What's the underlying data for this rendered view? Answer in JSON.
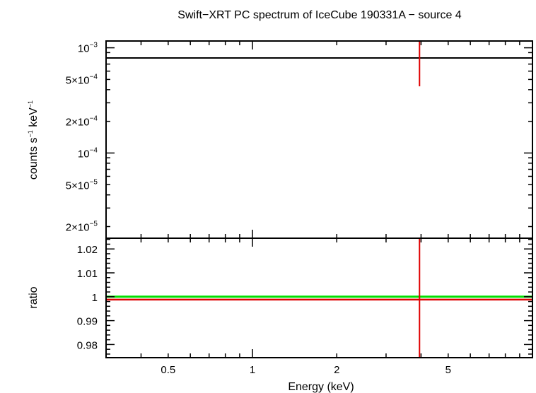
{
  "chart_data": {
    "title": "Swift−XRT PC spectrum of IceCube 190331A − source 4",
    "xlabel": "Energy (keV)",
    "x_scale": "log",
    "xlim": [
      0.3,
      10
    ],
    "x_ticks": [
      {
        "value": 0.5,
        "label": "0.5"
      },
      {
        "value": 1,
        "label": "1"
      },
      {
        "value": 2,
        "label": "2"
      },
      {
        "value": 5,
        "label": "5"
      }
    ],
    "colors": {
      "model": "#000000",
      "data": "#e00000",
      "ratio_unity": "#00e000",
      "frame": "#000000"
    },
    "panels": [
      {
        "id": "spectrum",
        "type": "line",
        "ylabel_base": "counts s",
        "ylabel_exp1": "−1",
        "ylabel_mid": " keV",
        "ylabel_exp2": "−1",
        "y_scale": "log",
        "ylim": [
          1.55e-05,
          0.00116
        ],
        "y_ticks": [
          {
            "value": 0.001,
            "mantissa": "",
            "exponent": "−3"
          },
          {
            "value": 0.0005,
            "mantissa": "5×",
            "exponent": "−4"
          },
          {
            "value": 0.0002,
            "mantissa": "2×",
            "exponent": "−4"
          },
          {
            "value": 0.0001,
            "mantissa": "",
            "exponent": "−4"
          },
          {
            "value": 5e-05,
            "mantissa": "5×",
            "exponent": "−5"
          },
          {
            "value": 2e-05,
            "mantissa": "2×",
            "exponent": "−5"
          }
        ],
        "model": {
          "x": [
            0.3,
            10
          ],
          "y": [
            0.0008,
            0.0008
          ]
        },
        "data_point": {
          "x": 3.95,
          "y_low": 0.00043,
          "y_high": 0.00116
        }
      },
      {
        "id": "ratio",
        "type": "line",
        "ylabel": "ratio",
        "y_scale": "linear",
        "ylim": [
          0.9745,
          1.0245
        ],
        "y_ticks": [
          {
            "value": 1.02,
            "label": "1.02"
          },
          {
            "value": 1.01,
            "label": "1.01"
          },
          {
            "value": 1.0,
            "label": "1"
          },
          {
            "value": 0.99,
            "label": "0.99"
          },
          {
            "value": 0.98,
            "label": "0.98"
          }
        ],
        "unity_line": {
          "x": [
            0.3,
            10
          ],
          "y": [
            1.0,
            1.0
          ]
        },
        "data_line": {
          "x": [
            0.3,
            10
          ],
          "y": [
            0.9988,
            0.9988
          ]
        },
        "data_point": {
          "x": 3.95,
          "y_low": 0.9745,
          "y_high": 1.0245
        }
      }
    ]
  }
}
